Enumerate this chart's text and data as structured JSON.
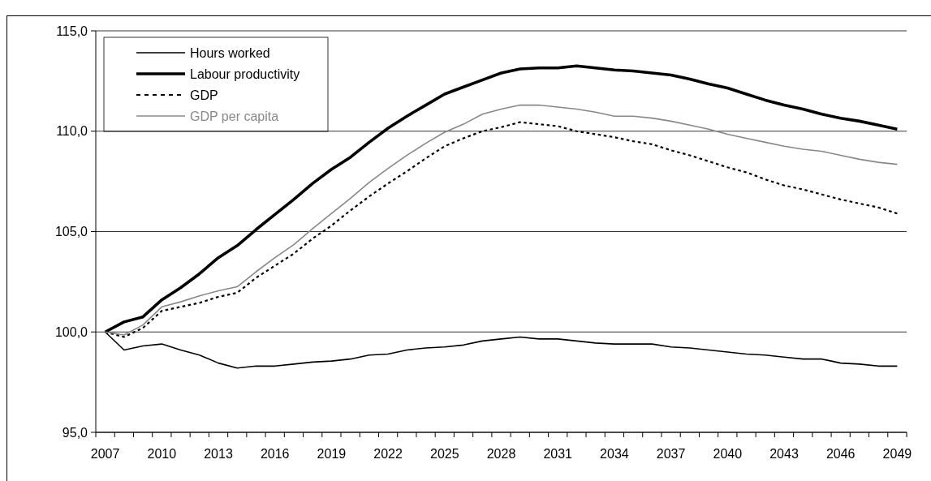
{
  "chart_data": {
    "type": "line",
    "categories": [
      "2007",
      null,
      null,
      "2010",
      null,
      null,
      "2013",
      null,
      null,
      "2016",
      null,
      null,
      "2019",
      null,
      null,
      "2022",
      null,
      null,
      "2025",
      null,
      null,
      "2028",
      null,
      null,
      "2031",
      null,
      null,
      "2034",
      null,
      null,
      "2037",
      null,
      null,
      "2040",
      null,
      null,
      "2043",
      null,
      null,
      "2046",
      null,
      null,
      "2049"
    ],
    "series": [
      {
        "name": "Hours worked",
        "color": "#000000",
        "line_style": "solid",
        "values": [
          100,
          99.1,
          99.3,
          99.4,
          99.1,
          98.85,
          98.45,
          98.2,
          98.3,
          98.3,
          98.4,
          98.5,
          98.55,
          98.65,
          98.85,
          98.9,
          99.1,
          99.2,
          99.25,
          99.35,
          99.55,
          99.65,
          99.75,
          99.65,
          99.65,
          99.55,
          99.45,
          99.4,
          99.4,
          99.4,
          99.25,
          99.2,
          99.1,
          99.0,
          98.9,
          98.85,
          98.75,
          98.65,
          98.65,
          98.45,
          98.4,
          98.3,
          98.3
        ]
      },
      {
        "name": "Labour productivity",
        "color": "#000000",
        "line_style": "solid",
        "values": [
          100,
          100.5,
          100.75,
          101.6,
          102.2,
          102.9,
          103.7,
          104.3,
          105.1,
          105.85,
          106.6,
          107.4,
          108.1,
          108.7,
          109.45,
          110.15,
          110.75,
          111.3,
          111.85,
          112.2,
          112.55,
          112.9,
          113.1,
          113.15,
          113.15,
          113.25,
          113.15,
          113.05,
          113.0,
          112.9,
          112.8,
          112.6,
          112.35,
          112.15,
          111.85,
          111.55,
          111.3,
          111.1,
          110.85,
          110.65,
          110.5,
          110.3,
          110.1
        ]
      },
      {
        "name": "GDP",
        "color": "#000000",
        "line_style": "dashed",
        "values": [
          100,
          99.75,
          100.2,
          101.05,
          101.25,
          101.45,
          101.75,
          101.95,
          102.7,
          103.3,
          103.9,
          104.65,
          105.3,
          106.05,
          106.75,
          107.4,
          108.0,
          108.65,
          109.25,
          109.65,
          110.0,
          110.2,
          110.45,
          110.35,
          110.25,
          110.0,
          109.85,
          109.7,
          109.5,
          109.35,
          109.05,
          108.8,
          108.5,
          108.2,
          107.95,
          107.6,
          107.3,
          107.1,
          106.85,
          106.6,
          106.4,
          106.2,
          105.9
        ]
      },
      {
        "name": "GDP per capita",
        "color": "#888888",
        "line_style": "solid",
        "values": [
          100,
          99.85,
          100.35,
          101.25,
          101.5,
          101.8,
          102.05,
          102.25,
          103.0,
          103.7,
          104.35,
          105.15,
          105.9,
          106.65,
          107.45,
          108.15,
          108.8,
          109.4,
          109.95,
          110.35,
          110.85,
          111.1,
          111.3,
          111.3,
          111.2,
          111.1,
          110.95,
          110.75,
          110.75,
          110.65,
          110.5,
          110.3,
          110.1,
          109.85,
          109.65,
          109.45,
          109.25,
          109.1,
          109.0,
          108.8,
          108.6,
          108.45,
          108.35
        ]
      }
    ],
    "ylim": [
      95,
      115
    ],
    "yticks": [
      {
        "value": 95,
        "label": "95,0"
      },
      {
        "value": 100,
        "label": "100,0"
      },
      {
        "value": 105,
        "label": "105,0"
      },
      {
        "value": 110,
        "label": "110,0"
      },
      {
        "value": 115,
        "label": "115,0"
      }
    ],
    "grid": "y",
    "legend": "top left"
  }
}
